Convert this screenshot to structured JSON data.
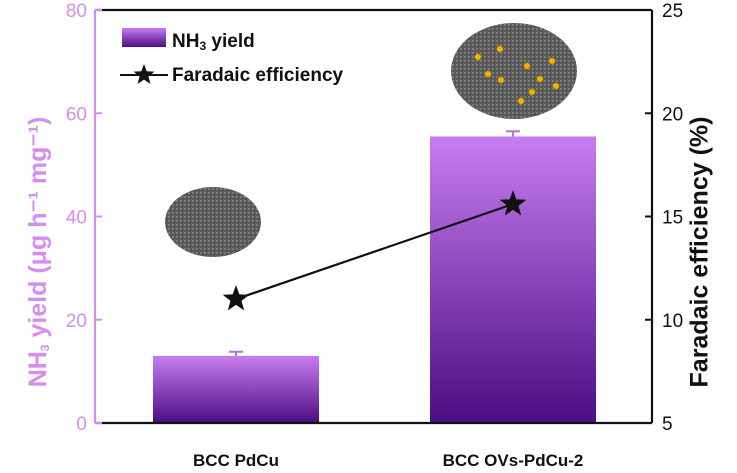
{
  "chart_data": {
    "type": "bar",
    "categories": [
      "BCC PdCu",
      "BCC OVs-PdCu-2"
    ],
    "series": [
      {
        "name": "NH3 yield",
        "axis": "left",
        "values": [
          13.0,
          55.5
        ],
        "errors": [
          0.8,
          1.0
        ]
      },
      {
        "name": "Faradaic efficiency",
        "axis": "right",
        "values": [
          11.0,
          15.6
        ]
      }
    ],
    "ylabel_left": {
      "prefix": "NH",
      "sub": "3",
      "rest": " yield (μg h⁻¹ mg⁻¹)"
    },
    "ylabel_right": "Faradaic efficiency (%)",
    "ylim_left": [
      0,
      80
    ],
    "ylim_right": [
      5,
      25
    ],
    "yticks_left": [
      0,
      20,
      40,
      60,
      80
    ],
    "yticks_right": [
      5,
      10,
      15,
      20,
      25
    ],
    "legend": {
      "placement": "top-left",
      "bar_label": {
        "prefix": "NH",
        "sub": "3",
        "rest": " yield"
      },
      "line_label": "Faradaic efficiency"
    },
    "colors": {
      "left_axis": "#d48ef2",
      "bar_top": "#c77df0",
      "bar_bottom": "#4b0d82",
      "line": "#111111"
    }
  }
}
